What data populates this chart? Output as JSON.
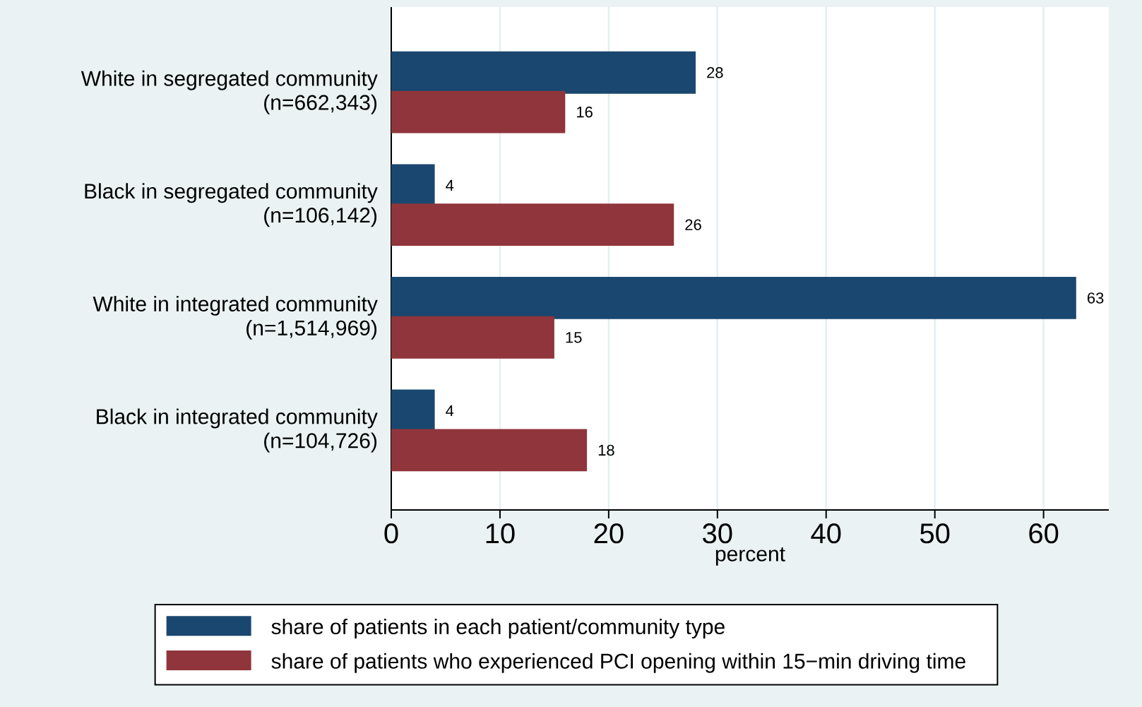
{
  "chart_data": {
    "type": "bar",
    "orientation": "horizontal",
    "xlabel": "percent",
    "categories": [
      "White in segregated community (n=662,343)",
      "Black in segregated community (n=106,142)",
      "White in integrated community (n=1,514,969)",
      "Black in integrated community (n=104,726)"
    ],
    "series": [
      {
        "name": "share of patients in each patient/community type",
        "color": "#1a476f",
        "values": [
          28,
          4,
          63,
          4
        ]
      },
      {
        "name": "share of patients who experienced PCI opening within 15−min driving time",
        "color": "#90353b",
        "values": [
          16,
          26,
          15,
          18
        ]
      }
    ],
    "xlim": [
      0,
      66
    ],
    "xticks": [
      0,
      10,
      20,
      30,
      40,
      50,
      60
    ],
    "grid": "x",
    "legend": "bottom",
    "data_labels": true
  }
}
